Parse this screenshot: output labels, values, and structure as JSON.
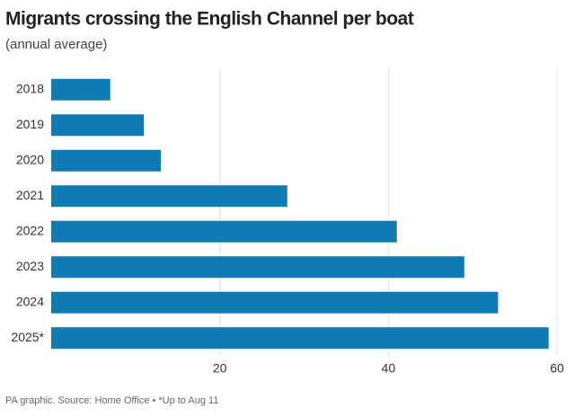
{
  "chart_data": {
    "type": "bar",
    "orientation": "horizontal",
    "title": "Migrants crossing the English Channel per boat",
    "subtitle": "(annual average)",
    "categories": [
      "2018",
      "2019",
      "2020",
      "2021",
      "2022",
      "2023",
      "2024",
      "2025*"
    ],
    "values": [
      7,
      11,
      13,
      28,
      41,
      49,
      53,
      59
    ],
    "color": "#0e7bb5",
    "xlim": [
      0,
      60
    ],
    "xticks": [
      20,
      40,
      60
    ],
    "grid": true,
    "footer": "PA graphic. Source: Home Office • *Up to Aug 11"
  }
}
